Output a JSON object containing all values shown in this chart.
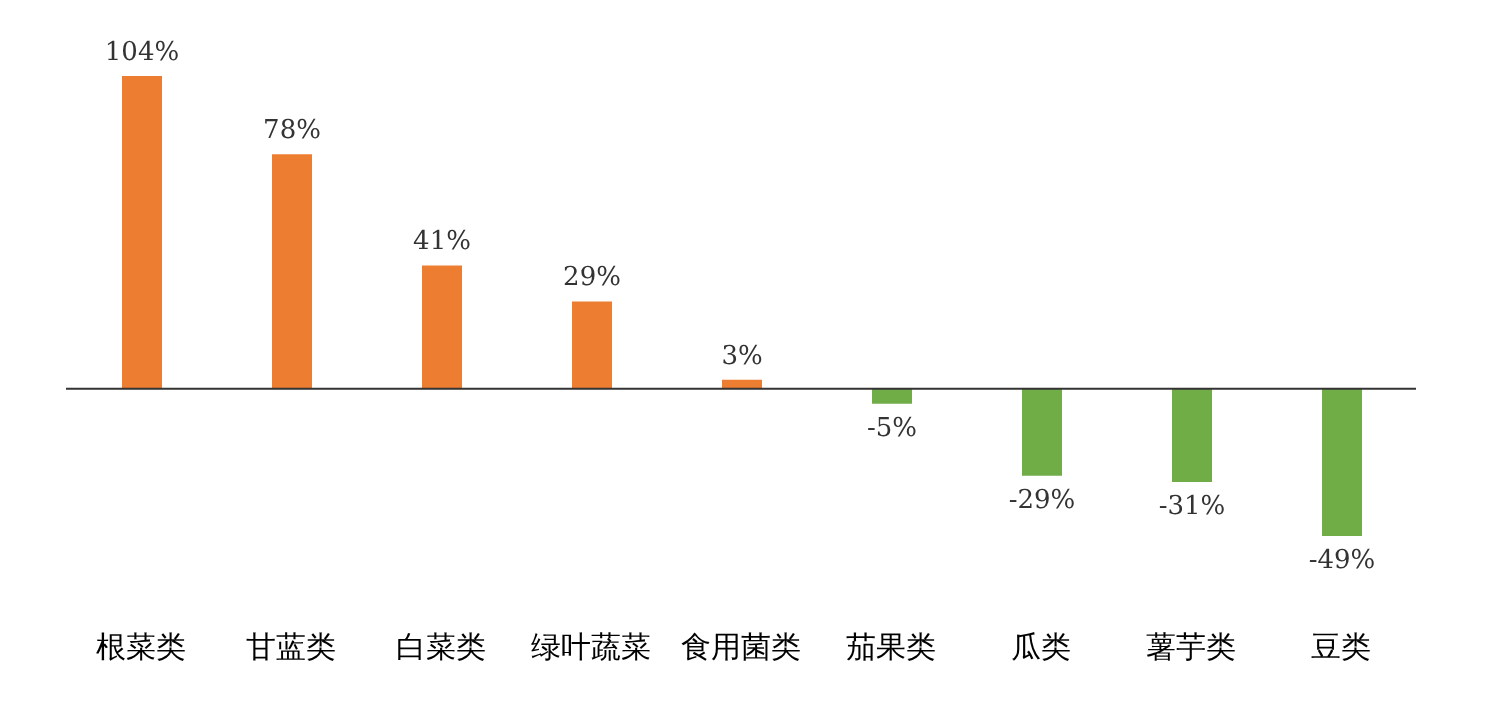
{
  "chart_data": {
    "type": "bar",
    "categories": [
      "根菜类",
      "甘蓝类",
      "白菜类",
      "绿叶蔬菜",
      "食用菌类",
      "茄果类",
      "瓜类",
      "薯芋类",
      "豆类"
    ],
    "values": [
      104,
      78,
      41,
      29,
      3,
      -5,
      -29,
      -31,
      -49
    ],
    "colors": [
      "#ed7d31",
      "#ed7d31",
      "#ed7d31",
      "#ed7d31",
      "#ed7d31",
      "#70ad47",
      "#70ad47",
      "#70ad47",
      "#70ad47"
    ],
    "value_labels": [
      "104%",
      "78%",
      "41%",
      "29%",
      "3%",
      "-5%",
      "-29%",
      "-31%",
      "-49%"
    ],
    "grid": false,
    "legend": false
  }
}
